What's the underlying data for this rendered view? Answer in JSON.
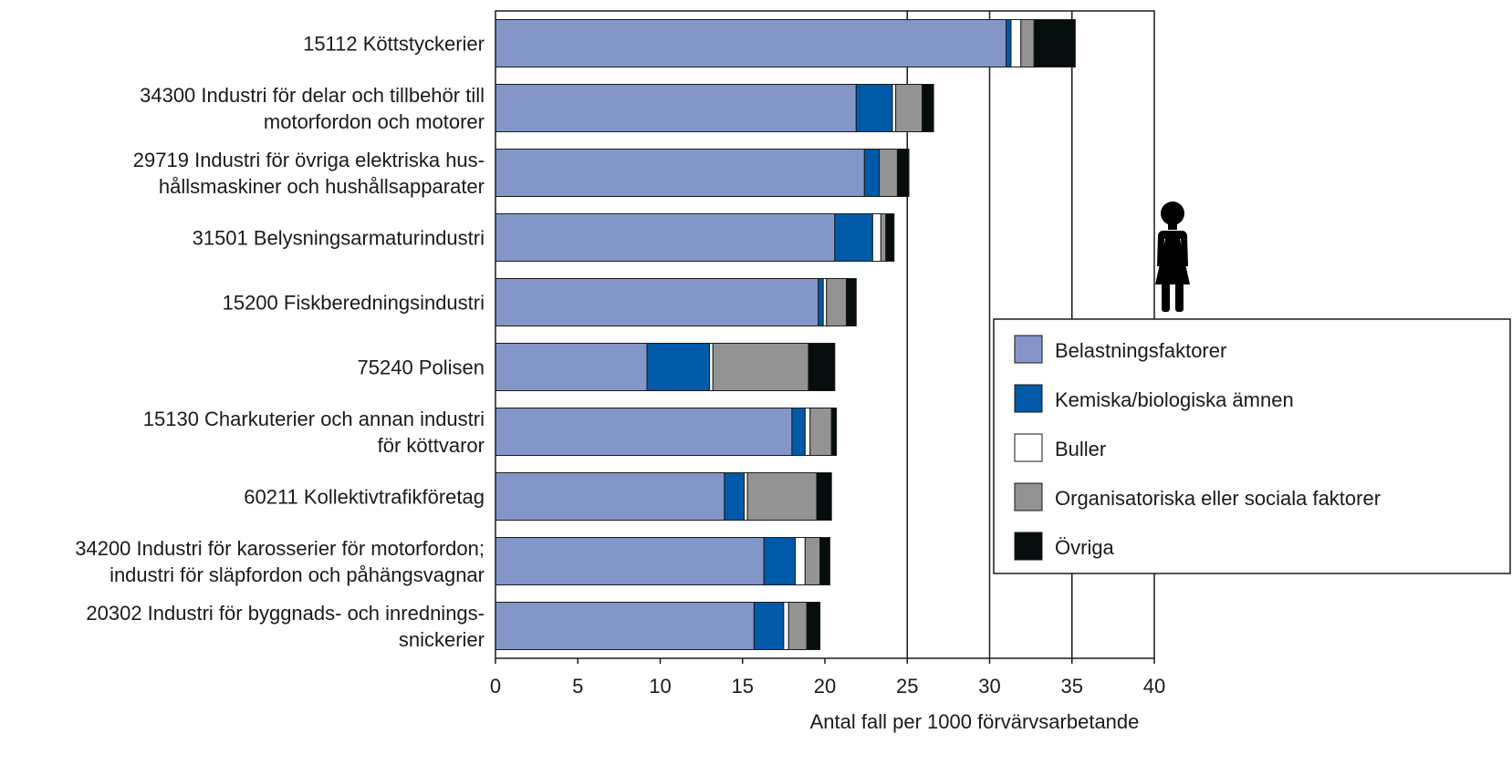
{
  "chart_data": {
    "type": "bar",
    "orientation": "horizontal",
    "stacked": true,
    "categories": [
      [
        "15112 Köttstyckerier"
      ],
      [
        "34300 Industri för delar och tillbehör till",
        "motorfordon och motorer"
      ],
      [
        "29719 Industri för övriga elektriska hus-",
        "hållsmaskiner och hushållsapparater"
      ],
      [
        "31501 Belysningsarmaturindustri"
      ],
      [
        "15200 Fiskberedningsindustri"
      ],
      [
        "75240 Polisen"
      ],
      [
        "15130 Charkuterier och annan industri",
        "för köttvaror"
      ],
      [
        "60211 Kollektivtrafikföretag"
      ],
      [
        "34200 Industri för karosserier för motorfordon;",
        "industri för släpfordon och påhängsvagnar"
      ],
      [
        "20302 Industri för byggnads- och inrednings-",
        "snickerier"
      ]
    ],
    "series": [
      {
        "name": "Belastningsfaktorer",
        "color": "#8496c8",
        "values": [
          31.0,
          21.9,
          22.4,
          20.6,
          19.6,
          9.2,
          18.0,
          13.9,
          16.3,
          15.7
        ]
      },
      {
        "name": "Kemiska/biologiska ämnen",
        "color": "#005aa8",
        "values": [
          0.3,
          2.2,
          0.9,
          2.3,
          0.3,
          3.8,
          0.8,
          1.2,
          1.9,
          1.8
        ]
      },
      {
        "name": "Buller",
        "color": "#ffffff",
        "values": [
          0.6,
          0.2,
          0.0,
          0.5,
          0.2,
          0.2,
          0.3,
          0.2,
          0.6,
          0.3
        ]
      },
      {
        "name": "Organisatoriska eller sociala faktorer",
        "color": "#939393",
        "values": [
          0.8,
          1.6,
          1.1,
          0.3,
          1.2,
          5.8,
          1.3,
          4.2,
          0.9,
          1.1
        ]
      },
      {
        "name": "Övriga",
        "color": "#050d0d",
        "values": [
          2.5,
          0.7,
          0.7,
          0.5,
          0.6,
          1.6,
          0.3,
          0.9,
          0.6,
          0.8
        ]
      }
    ],
    "xlim": [
      0,
      40
    ],
    "xticks": [
      "0",
      "5",
      "10",
      "15",
      "20",
      "25",
      "30",
      "35",
      "40"
    ],
    "xlabel": "Antal fall per 1000 förvärvsarbetande",
    "gridlines_at": [
      25,
      30,
      35
    ],
    "legend_position": "right",
    "icon": "woman-icon"
  }
}
